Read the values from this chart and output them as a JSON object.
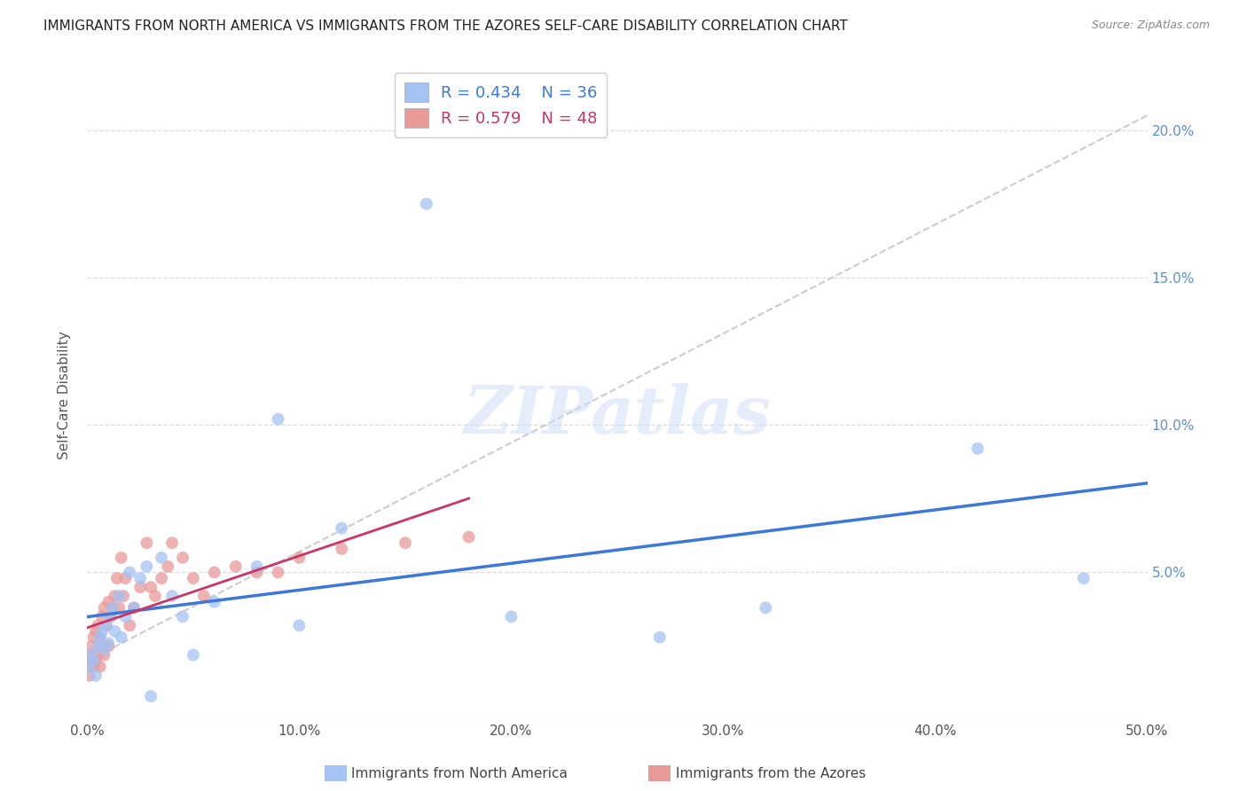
{
  "title": "IMMIGRANTS FROM NORTH AMERICA VS IMMIGRANTS FROM THE AZORES SELF-CARE DISABILITY CORRELATION CHART",
  "source": "Source: ZipAtlas.com",
  "ylabel": "Self-Care Disability",
  "xlim": [
    0.0,
    0.5
  ],
  "ylim": [
    0.0,
    0.22
  ],
  "xticks": [
    0.0,
    0.1,
    0.2,
    0.3,
    0.4,
    0.5
  ],
  "yticks": [
    0.0,
    0.05,
    0.1,
    0.15,
    0.2
  ],
  "xticklabels": [
    "0.0%",
    "10.0%",
    "20.0%",
    "30.0%",
    "40.0%",
    "50.0%"
  ],
  "right_yticklabels": [
    "",
    "5.0%",
    "10.0%",
    "15.0%",
    "20.0%"
  ],
  "legend_blue_r": "R = 0.434",
  "legend_blue_n": "N = 36",
  "legend_pink_r": "R = 0.579",
  "legend_pink_n": "N = 48",
  "blue_scatter_color": "#a4c2f4",
  "pink_scatter_color": "#ea9999",
  "blue_line_color": "#3c78d8",
  "pink_line_color": "#cc3366",
  "dashed_line_color": "#cccccc",
  "watermark": "ZIPatlas",
  "north_america_x": [
    0.001,
    0.002,
    0.003,
    0.004,
    0.005,
    0.006,
    0.007,
    0.008,
    0.009,
    0.01,
    0.011,
    0.012,
    0.013,
    0.015,
    0.016,
    0.018,
    0.02,
    0.022,
    0.025,
    0.028,
    0.03,
    0.035,
    0.04,
    0.045,
    0.05,
    0.06,
    0.08,
    0.09,
    0.1,
    0.12,
    0.16,
    0.2,
    0.27,
    0.32,
    0.42,
    0.47
  ],
  "north_america_y": [
    0.018,
    0.022,
    0.02,
    0.015,
    0.025,
    0.028,
    0.03,
    0.024,
    0.032,
    0.026,
    0.035,
    0.038,
    0.03,
    0.042,
    0.028,
    0.035,
    0.05,
    0.038,
    0.048,
    0.052,
    0.008,
    0.055,
    0.042,
    0.035,
    0.022,
    0.04,
    0.052,
    0.102,
    0.032,
    0.065,
    0.175,
    0.035,
    0.028,
    0.038,
    0.092,
    0.048
  ],
  "azores_x": [
    0.001,
    0.001,
    0.002,
    0.002,
    0.002,
    0.003,
    0.003,
    0.004,
    0.004,
    0.005,
    0.005,
    0.006,
    0.006,
    0.007,
    0.007,
    0.008,
    0.008,
    0.009,
    0.01,
    0.01,
    0.011,
    0.012,
    0.013,
    0.014,
    0.015,
    0.016,
    0.017,
    0.018,
    0.02,
    0.022,
    0.025,
    0.028,
    0.03,
    0.032,
    0.035,
    0.038,
    0.04,
    0.045,
    0.05,
    0.055,
    0.06,
    0.07,
    0.08,
    0.09,
    0.1,
    0.12,
    0.15,
    0.18
  ],
  "azores_y": [
    0.015,
    0.018,
    0.02,
    0.022,
    0.025,
    0.018,
    0.028,
    0.02,
    0.03,
    0.022,
    0.032,
    0.018,
    0.028,
    0.025,
    0.035,
    0.022,
    0.038,
    0.032,
    0.025,
    0.04,
    0.035,
    0.038,
    0.042,
    0.048,
    0.038,
    0.055,
    0.042,
    0.048,
    0.032,
    0.038,
    0.045,
    0.06,
    0.045,
    0.042,
    0.048,
    0.052,
    0.06,
    0.055,
    0.048,
    0.042,
    0.05,
    0.052,
    0.05,
    0.05,
    0.055,
    0.058,
    0.06,
    0.062
  ]
}
